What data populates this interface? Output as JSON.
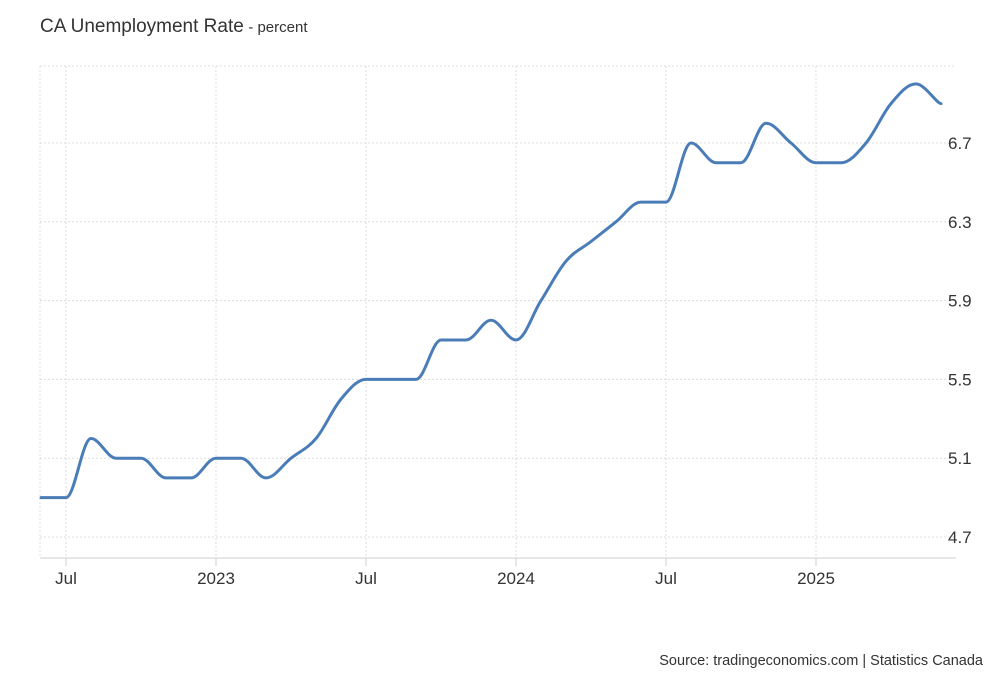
{
  "chart_data": {
    "type": "line",
    "title": "CA Unemployment Rate",
    "subtitle": "percent",
    "source": "Source: tradingeconomics.com | Statistics Canada",
    "x_tick_labels": [
      "Jul",
      "2023",
      "Jul",
      "2024",
      "Jul",
      "2025"
    ],
    "y_ticks": [
      4.7,
      5.1,
      5.5,
      5.9,
      6.3,
      6.7
    ],
    "y_tick_labels": [
      "4.7",
      "5.1",
      "5.5",
      "5.9",
      "6.3",
      "6.7"
    ],
    "ylim": [
      4.6,
      7.1
    ],
    "grid": true,
    "series": [
      {
        "color": "#4a7db8",
        "x": [
          "2022-06",
          "2022-07",
          "2022-08",
          "2022-09",
          "2022-10",
          "2022-11",
          "2022-12",
          "2023-01",
          "2023-02",
          "2023-03",
          "2023-04",
          "2023-05",
          "2023-06",
          "2023-07",
          "2023-08",
          "2023-09",
          "2023-10",
          "2023-11",
          "2023-12",
          "2024-01",
          "2024-02",
          "2024-03",
          "2024-04",
          "2024-05",
          "2024-06",
          "2024-07",
          "2024-08",
          "2024-09",
          "2024-10",
          "2024-11",
          "2024-12",
          "2025-01",
          "2025-02",
          "2025-03",
          "2025-04",
          "2025-05",
          "2025-06"
        ],
        "values": [
          4.9,
          4.9,
          5.2,
          5.1,
          5.1,
          5.0,
          5.0,
          5.1,
          5.1,
          5.0,
          5.1,
          5.2,
          5.4,
          5.5,
          5.5,
          5.5,
          5.7,
          5.7,
          5.8,
          5.7,
          5.9,
          6.1,
          6.2,
          6.3,
          6.4,
          6.4,
          6.7,
          6.6,
          6.6,
          6.8,
          6.7,
          6.6,
          6.6,
          6.7,
          6.9,
          7.0,
          6.9
        ]
      }
    ]
  }
}
